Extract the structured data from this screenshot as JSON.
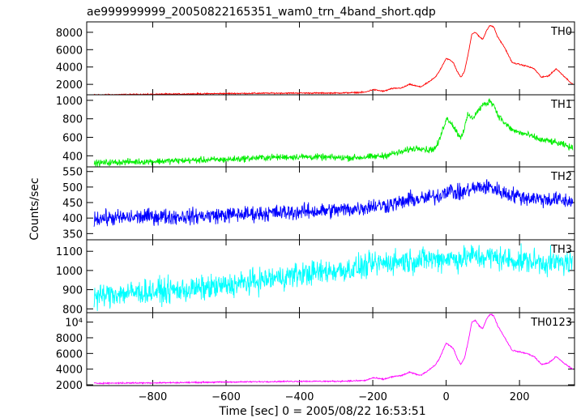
{
  "chart_data": {
    "type": "line",
    "title": "ae999999999_20050822165351_wam0_trn_4band_short.qdp",
    "xlabel": "Time [sec] 0 = 2005/08/22 16:53:51",
    "ylabel": "Counts/sec",
    "xlim": [
      -980,
      350
    ],
    "x_ticks": [
      -800,
      -600,
      -400,
      -200,
      0,
      200
    ],
    "x_tick_labels": [
      "−800",
      "−600",
      "−400",
      "−200",
      "0",
      "200"
    ],
    "x": [
      -960,
      -900,
      -800,
      -700,
      -600,
      -500,
      -400,
      -300,
      -250,
      -220,
      -200,
      -170,
      -150,
      -120,
      -100,
      -70,
      -50,
      -30,
      -20,
      0,
      10,
      20,
      30,
      40,
      50,
      60,
      70,
      80,
      90,
      100,
      110,
      120,
      130,
      140,
      160,
      180,
      200,
      220,
      240,
      260,
      280,
      300,
      320,
      345
    ],
    "series": [
      {
        "name": "TH0",
        "color": "#ff0000",
        "ylim": [
          800,
          9200
        ],
        "y_ticks": [
          2000,
          4000,
          6000,
          8000
        ],
        "y_tick_labels": [
          "2000",
          "4000",
          "6000",
          "8000"
        ],
        "noise": 60,
        "values": [
          800,
          820,
          860,
          900,
          950,
          980,
          1000,
          1000,
          1050,
          1100,
          1400,
          1200,
          1500,
          1600,
          2000,
          1700,
          2200,
          2800,
          3400,
          5000,
          4800,
          4500,
          3500,
          2800,
          3500,
          5500,
          7800,
          8000,
          7500,
          7200,
          8200,
          8800,
          8600,
          7500,
          6200,
          4500,
          4300,
          4100,
          3800,
          2800,
          3000,
          3800,
          3000,
          2000
        ]
      },
      {
        "name": "TH1",
        "color": "#00ee00",
        "ylim": [
          280,
          1060
        ],
        "y_ticks": [
          400,
          600,
          800,
          1000
        ],
        "y_tick_labels": [
          "400",
          "600",
          "800",
          "1000"
        ],
        "noise": 30,
        "values": [
          320,
          330,
          340,
          350,
          360,
          380,
          390,
          380,
          380,
          385,
          390,
          400,
          420,
          440,
          470,
          490,
          460,
          480,
          550,
          800,
          780,
          720,
          650,
          600,
          700,
          850,
          800,
          850,
          900,
          950,
          960,
          1000,
          950,
          850,
          750,
          680,
          650,
          630,
          600,
          570,
          560,
          540,
          520,
          480
        ]
      },
      {
        "name": "TH2",
        "color": "#0000ff",
        "ylim": [
          330,
          565
        ],
        "y_ticks": [
          350,
          400,
          450,
          500,
          550
        ],
        "y_tick_labels": [
          "350",
          "400",
          "450",
          "500",
          "550"
        ],
        "noise": 22,
        "values": [
          400,
          400,
          405,
          405,
          410,
          415,
          420,
          425,
          430,
          435,
          440,
          440,
          445,
          450,
          460,
          460,
          465,
          470,
          470,
          490,
          490,
          485,
          480,
          480,
          485,
          490,
          495,
          495,
          500,
          500,
          500,
          500,
          495,
          490,
          480,
          475,
          470,
          465,
          465,
          460,
          460,
          460,
          455,
          455
        ]
      },
      {
        "name": "TH3",
        "color": "#00ffff",
        "ylim": [
          780,
          1160
        ],
        "y_ticks": [
          800,
          900,
          1000,
          1100
        ],
        "y_tick_labels": [
          "800",
          "900",
          "1000",
          "1100"
        ],
        "noise": 55,
        "values": [
          860,
          880,
          890,
          900,
          920,
          950,
          980,
          1000,
          1010,
          1020,
          1030,
          1040,
          1045,
          1050,
          1050,
          1055,
          1060,
          1060,
          1060,
          1065,
          1065,
          1060,
          1060,
          1060,
          1065,
          1070,
          1075,
          1075,
          1070,
          1070,
          1070,
          1070,
          1070,
          1065,
          1060,
          1055,
          1050,
          1050,
          1045,
          1045,
          1040,
          1040,
          1040,
          1040
        ]
      },
      {
        "name": "TH0123",
        "color": "#ff00ff",
        "ylim": [
          1900,
          11200
        ],
        "y_ticks": [
          2000,
          4000,
          6000,
          8000,
          10000
        ],
        "y_tick_labels": [
          "2000",
          "4000",
          "6000",
          "8000",
          "10⁴"
        ],
        "noise": 70,
        "values": [
          2200,
          2220,
          2250,
          2300,
          2350,
          2400,
          2450,
          2450,
          2500,
          2550,
          2900,
          2700,
          3000,
          3200,
          3600,
          3200,
          3800,
          4500,
          5200,
          7300,
          7000,
          6600,
          5400,
          4600,
          5400,
          7500,
          10000,
          10200,
          9500,
          9200,
          10400,
          11000,
          10800,
          9600,
          8000,
          6400,
          6200,
          6000,
          5600,
          4600,
          4800,
          5600,
          4800,
          4000
        ]
      }
    ],
    "grid": false,
    "legend": "panel labels top-right"
  }
}
